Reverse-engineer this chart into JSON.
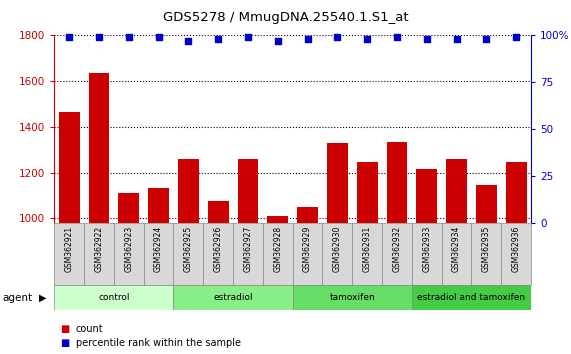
{
  "title": "GDS5278 / MmugDNA.25540.1.S1_at",
  "samples": [
    "GSM362921",
    "GSM362922",
    "GSM362923",
    "GSM362924",
    "GSM362925",
    "GSM362926",
    "GSM362927",
    "GSM362928",
    "GSM362929",
    "GSM362930",
    "GSM362931",
    "GSM362932",
    "GSM362933",
    "GSM362934",
    "GSM362935",
    "GSM362936"
  ],
  "counts": [
    1465,
    1635,
    1110,
    1135,
    1260,
    1075,
    1258,
    1010,
    1050,
    1330,
    1245,
    1335,
    1215,
    1258,
    1145,
    1248
  ],
  "percentiles": [
    99,
    99,
    99,
    99,
    97,
    98,
    99,
    97,
    98,
    99,
    98,
    99,
    98,
    98,
    98,
    99
  ],
  "bar_color": "#cc0000",
  "dot_color": "#0000cc",
  "ylim_left": [
    980,
    1800
  ],
  "ylim_right": [
    0,
    100
  ],
  "yticks_left": [
    1000,
    1200,
    1400,
    1600,
    1800
  ],
  "yticks_right": [
    0,
    25,
    50,
    75,
    100
  ],
  "groups": [
    {
      "label": "control",
      "start": 0,
      "end": 4,
      "color": "#ccffcc"
    },
    {
      "label": "estradiol",
      "start": 4,
      "end": 8,
      "color": "#88ee88"
    },
    {
      "label": "tamoxifen",
      "start": 8,
      "end": 12,
      "color": "#66dd66"
    },
    {
      "label": "estradiol and tamoxifen",
      "start": 12,
      "end": 16,
      "color": "#44cc44"
    }
  ],
  "agent_label": "agent",
  "legend_count": "count",
  "legend_percentile": "percentile rank within the sample",
  "bg_color": "#ffffff",
  "tick_color_left": "#cc0000",
  "tick_color_right": "#0000cc",
  "bar_width": 0.7,
  "label_box_color": "#d8d8d8",
  "label_box_edge": "#888888"
}
